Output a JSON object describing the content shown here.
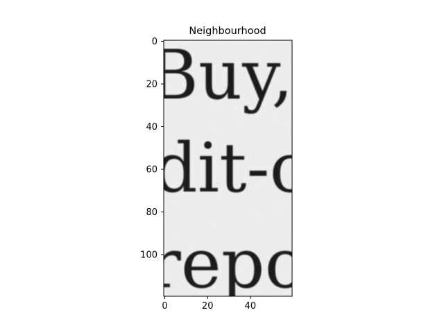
{
  "chart_data": {
    "type": "image",
    "title": "Neighbourhood",
    "xlabel": "",
    "ylabel": "",
    "x_extent": [
      -0.5,
      59.5
    ],
    "y_extent": [
      119.5,
      -0.5
    ],
    "x_ticks": [
      0,
      20,
      40
    ],
    "y_ticks": [
      0,
      20,
      40,
      60,
      80,
      100
    ],
    "colormap": "gray",
    "grid": false,
    "image_text_lines": [
      "Buy,",
      "dit-c",
      "repo"
    ]
  }
}
